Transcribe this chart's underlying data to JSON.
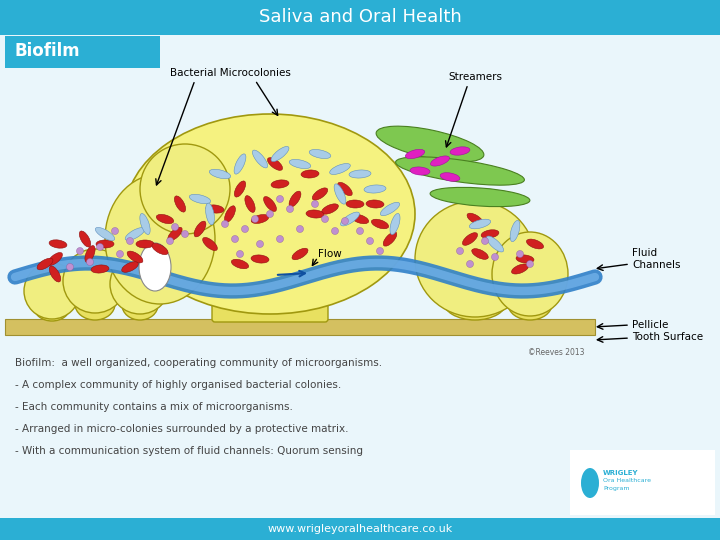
{
  "title": "Saliva and Oral Health",
  "title_bg": "#2bafd4",
  "title_color": "white",
  "title_fontsize": 13,
  "biofilm_label": "Biofilm",
  "biofilm_bg": "#2bafd4",
  "biofilm_color": "white",
  "biofilm_fontsize": 12,
  "bg_color": "#eaf6fb",
  "bottom_bar_color": "#2bafd4",
  "bottom_bar_text": "www.wrigleyoralhealthcare.co.uk",
  "bottom_bar_text_color": "white",
  "body_text_lines": [
    "Biofilm:  a well organized, cooperating community of microorganisms.",
    "- A complex community of highly organised bacterial colonies.",
    "- Each community contains a mix of microorganisms.",
    "- Arranged in micro-colonies surrounded by a protective matrix.",
    "- With a communication system of fluid channels: Quorum sensing"
  ],
  "body_text_color": "#444444",
  "body_text_fontsize": 7.5
}
